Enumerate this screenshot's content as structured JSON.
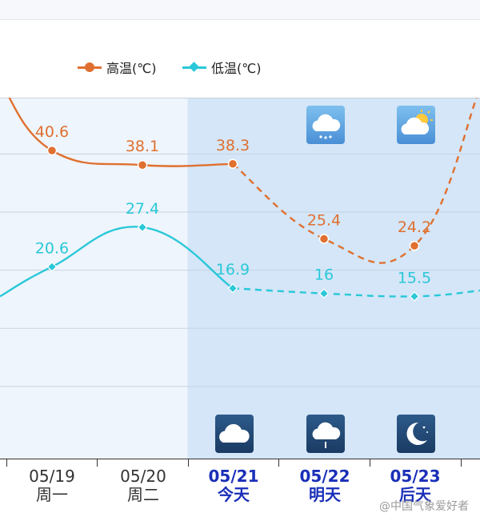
{
  "legend": {
    "high_label": "高温(℃)",
    "low_label": "低温(℃)"
  },
  "colors": {
    "high": "#e07030",
    "low": "#2ac8d8",
    "past_bg": "#eef5fc",
    "future_bg": "#d4e6f8",
    "grid": "#c8d3e0",
    "future_text": "#1a2fb8"
  },
  "chart_data": {
    "type": "line",
    "categories": [
      "05/19",
      "05/20",
      "05/21",
      "05/22",
      "05/23"
    ],
    "weekdays": [
      "周一",
      "周二",
      "今天",
      "明天",
      "后天"
    ],
    "series": [
      {
        "name": "高温(℃)",
        "values": [
          40.6,
          38.1,
          38.3,
          25.4,
          24.2
        ]
      },
      {
        "name": "低温(℃)",
        "values": [
          20.6,
          27.4,
          16.9,
          16,
          15.5
        ]
      }
    ],
    "forecast_start_index": 2,
    "labels": {
      "high": [
        "40.6",
        "38.1",
        "38.3",
        "25.4",
        "24.2"
      ],
      "low": [
        "20.6",
        "27.4",
        "16.9",
        "16",
        "15.5"
      ]
    },
    "ylim": [
      0,
      50
    ],
    "grid": true,
    "legend_position": "top-center",
    "day_icons": [
      "cloudy-rain",
      "partly-sunny"
    ],
    "night_icons": [
      "cloudy",
      "cloudy-rain",
      "moon-clear"
    ]
  },
  "watermark": "@中国气象爱好者"
}
